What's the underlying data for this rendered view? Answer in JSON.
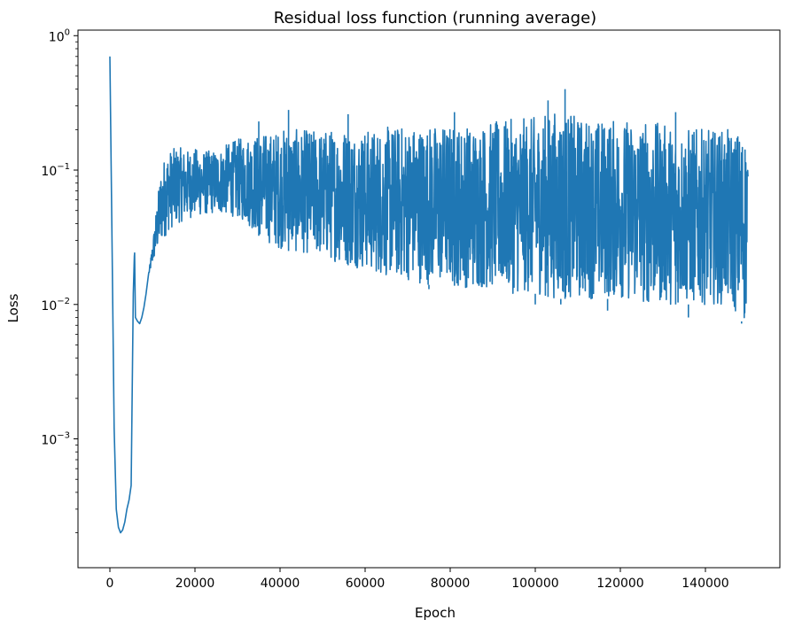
{
  "chart_data": {
    "type": "line",
    "title": "Residual loss function (running average)",
    "xlabel": "Epoch",
    "ylabel": "Loss",
    "xscale": "linear",
    "yscale": "log",
    "xlim": [
      -7500,
      157500
    ],
    "ylim": [
      0.00011,
      1.1
    ],
    "xticks": [
      0,
      20000,
      40000,
      60000,
      80000,
      100000,
      120000,
      140000
    ],
    "xtick_labels": [
      "0",
      "20000",
      "40000",
      "60000",
      "80000",
      "100000",
      "120000",
      "140000"
    ],
    "yticks": [
      0.001,
      0.01,
      0.1,
      1
    ],
    "ytick_labels": [
      {
        "base": "10",
        "exp": "−3"
      },
      {
        "base": "10",
        "exp": "−2"
      },
      {
        "base": "10",
        "exp": "−1"
      },
      {
        "base": "10",
        "exp": "0"
      }
    ],
    "grid": false,
    "legend": false,
    "series": [
      {
        "color": "#1f77b4",
        "x": [
          0,
          500,
          1000,
          1500,
          2000,
          2500,
          3000,
          3500,
          4000,
          4500,
          5000,
          5500,
          5800,
          6000,
          6500,
          7000,
          7500,
          8000,
          8500,
          9000,
          10000,
          11000,
          12000,
          13000,
          14000,
          16000,
          18000,
          20000,
          22000,
          24000,
          26000,
          28000,
          30000,
          32000,
          34000,
          36000,
          38000,
          40000,
          42000,
          44000,
          46000,
          48000,
          50000,
          55000,
          60000,
          65000,
          70000,
          75000,
          80000,
          85000,
          90000,
          95000,
          100000,
          105000,
          110000,
          115000,
          120000,
          125000,
          130000,
          135000,
          140000,
          145000,
          148000,
          149000,
          150000
        ],
        "y_upper": [
          0.7,
          0.03,
          0.0012,
          0.0003,
          0.00022,
          0.0002,
          0.00021,
          0.00024,
          0.0003,
          0.00035,
          0.00045,
          0.012,
          0.026,
          0.008,
          0.0075,
          0.0072,
          0.008,
          0.0095,
          0.012,
          0.016,
          0.028,
          0.055,
          0.1,
          0.13,
          0.14,
          0.15,
          0.14,
          0.145,
          0.14,
          0.14,
          0.145,
          0.16,
          0.17,
          0.18,
          0.18,
          0.19,
          0.19,
          0.2,
          0.21,
          0.2,
          0.2,
          0.2,
          0.2,
          0.21,
          0.2,
          0.21,
          0.22,
          0.22,
          0.22,
          0.22,
          0.23,
          0.24,
          0.25,
          0.28,
          0.25,
          0.24,
          0.24,
          0.24,
          0.22,
          0.21,
          0.2,
          0.2,
          0.2,
          0.2,
          0.19
        ],
        "y_lower": [
          0.7,
          0.03,
          0.0012,
          0.0003,
          0.00022,
          0.0002,
          0.00021,
          0.00024,
          0.0003,
          0.00035,
          0.00045,
          0.012,
          0.026,
          0.008,
          0.0075,
          0.0072,
          0.008,
          0.0095,
          0.012,
          0.016,
          0.02,
          0.024,
          0.028,
          0.032,
          0.036,
          0.04,
          0.043,
          0.045,
          0.046,
          0.047,
          0.047,
          0.046,
          0.044,
          0.04,
          0.035,
          0.03,
          0.028,
          0.026,
          0.025,
          0.024,
          0.024,
          0.023,
          0.022,
          0.02,
          0.018,
          0.016,
          0.015,
          0.014,
          0.014,
          0.013,
          0.013,
          0.012,
          0.012,
          0.011,
          0.011,
          0.011,
          0.011,
          0.01,
          0.01,
          0.01,
          0.01,
          0.01,
          0.008,
          0.007,
          0.009
        ],
        "spikes": [
          {
            "x": 5800,
            "y": 0.026
          },
          {
            "x": 35000,
            "y": 0.23
          },
          {
            "x": 42000,
            "y": 0.28
          },
          {
            "x": 56000,
            "y": 0.26
          },
          {
            "x": 81000,
            "y": 0.27
          },
          {
            "x": 103000,
            "y": 0.33
          },
          {
            "x": 107000,
            "y": 0.4
          },
          {
            "x": 133000,
            "y": 0.27
          }
        ],
        "dips": [
          {
            "x": 75000,
            "y": 0.013
          },
          {
            "x": 100000,
            "y": 0.01
          },
          {
            "x": 106000,
            "y": 0.01
          },
          {
            "x": 117000,
            "y": 0.009
          },
          {
            "x": 136000,
            "y": 0.008
          },
          {
            "x": 148500,
            "y": 0.0072
          }
        ]
      }
    ]
  }
}
